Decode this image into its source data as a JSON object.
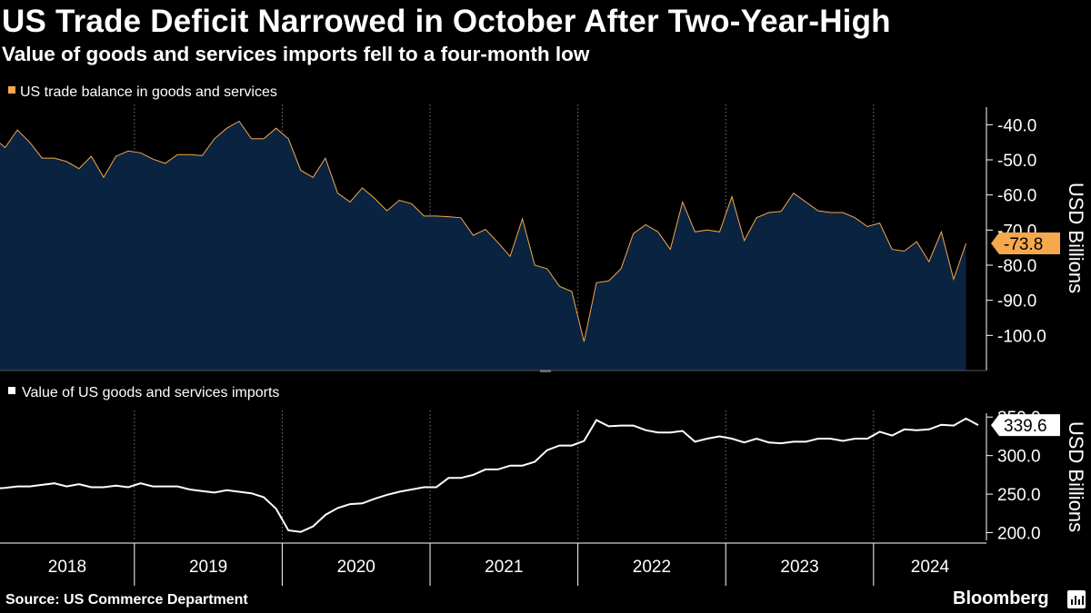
{
  "header": {
    "title": "US Trade Deficit Narrowed in October After Two-Year-High",
    "subtitle": "Value of goods and services imports fell to a four-month low"
  },
  "footer": {
    "source": "Source: US Commerce Department",
    "brand": "Bloomberg"
  },
  "colors": {
    "balance_line": "#f5a84c",
    "balance_fill": "#0a2340",
    "imports_line": "#ffffff",
    "grid": "#7a7a7a",
    "background": "#000000"
  },
  "chart_data": [
    {
      "type": "area",
      "title": "US trade balance in goods and services",
      "legend": "US trade balance in goods and services",
      "ylabel": "USD Billions",
      "ylim": [
        -110,
        -35
      ],
      "yticks": [
        -40,
        -50,
        -60,
        -70,
        -80,
        -90,
        -100
      ],
      "ytick_labels": [
        "-40.0",
        "-50.0",
        "-60.0",
        "-70.0",
        "-80.0",
        "-90.0",
        "-100.0"
      ],
      "x_start": "2018-01",
      "x_end": "2024-10",
      "last_value_label": "-73.8",
      "grid": "vertical dotted at year boundaries",
      "series": [
        {
          "values": [
            -43.5,
            -46.5,
            -41.5,
            -45.0,
            -49.5,
            -49.5,
            -50.5,
            -52.5,
            -49.0,
            -55.0,
            -49.0,
            -47.5,
            -48.0,
            -49.8,
            -51.0,
            -48.5,
            -48.5,
            -48.8,
            -44.0,
            -41.0,
            -39.0,
            -44.0,
            -44.0,
            -41.0,
            -44.0,
            -53.0,
            -55.0,
            -49.5,
            -59.5,
            -62.0,
            -58.0,
            -61.0,
            -64.5,
            -61.5,
            -62.5,
            -66.0,
            -66.0,
            -66.2,
            -66.5,
            -71.5,
            -69.8,
            -73.5,
            -77.5,
            -66.8,
            -80.0,
            -81.0,
            -86.0,
            -87.5,
            -101.8,
            -85.0,
            -84.5,
            -81.0,
            -71.0,
            -68.5,
            -70.5,
            -75.5,
            -62.0,
            -70.5,
            -70.0,
            -70.5,
            -60.5,
            -73.0,
            -66.5,
            -65.0,
            -64.7,
            -59.5,
            -62.0,
            -64.5,
            -65.0,
            -65.0,
            -66.5,
            -69.0,
            -68.0,
            -75.5,
            -76.0,
            -73.3,
            -79.0,
            -70.5,
            -84.0,
            -73.8
          ]
        }
      ]
    },
    {
      "type": "line",
      "title": "Value of US goods and services imports",
      "legend": "Value of US goods and services imports",
      "ylabel": "USD Billions",
      "ylim": [
        190,
        355
      ],
      "yticks": [
        200,
        250,
        300,
        350
      ],
      "ytick_labels": [
        "200.0",
        "250.0",
        "300.0",
        "350.0"
      ],
      "x_start": "2018-01",
      "x_end": "2024-10",
      "last_value_label": "339.6",
      "grid": "vertical dotted at year boundaries",
      "series": [
        {
          "values": [
            257,
            258,
            260,
            260,
            262,
            264,
            260,
            263,
            259,
            259,
            261,
            259,
            264,
            260,
            260,
            260,
            256,
            254,
            252,
            255,
            253,
            251,
            246,
            231,
            203,
            201,
            208,
            223,
            232,
            237,
            238,
            244,
            249,
            253,
            256,
            259,
            259,
            271,
            271,
            275,
            282,
            282,
            287,
            287,
            292,
            307,
            313,
            313,
            319,
            346,
            338,
            339,
            339,
            333,
            330,
            330,
            332,
            318,
            322,
            325,
            322,
            317,
            322,
            317,
            316,
            318,
            318,
            322,
            322,
            319,
            322,
            322,
            331,
            326,
            334,
            333,
            334,
            340,
            339,
            348,
            339.6
          ]
        }
      ]
    }
  ],
  "x_axis": {
    "year_labels": [
      "2018",
      "2019",
      "2020",
      "2021",
      "2022",
      "2023",
      "2024"
    ]
  }
}
